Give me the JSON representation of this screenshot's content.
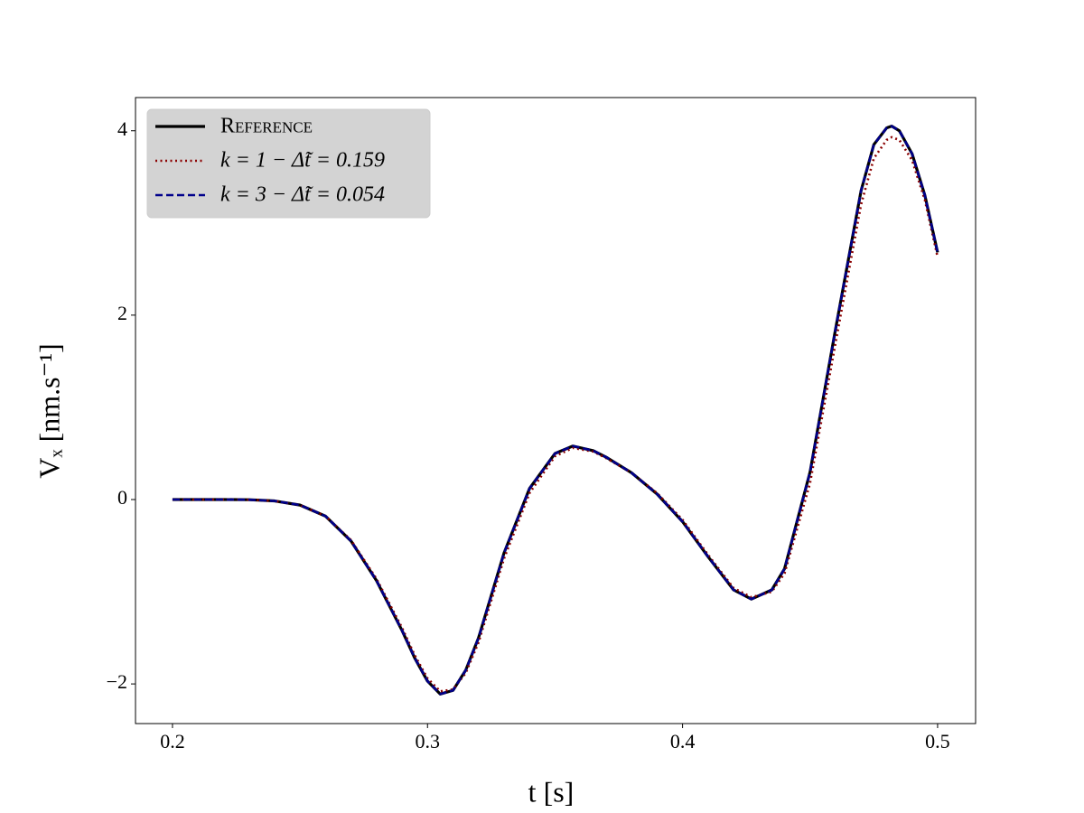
{
  "chart_data": {
    "type": "line",
    "xlabel": "t    [s]",
    "ylabel": "Vₓ    [nm.s⁻¹]",
    "x": [
      0.2,
      0.21,
      0.22,
      0.23,
      0.24,
      0.25,
      0.26,
      0.27,
      0.28,
      0.29,
      0.295,
      0.3,
      0.305,
      0.31,
      0.315,
      0.32,
      0.33,
      0.34,
      0.35,
      0.357,
      0.365,
      0.37,
      0.38,
      0.39,
      0.4,
      0.41,
      0.42,
      0.427,
      0.435,
      0.44,
      0.45,
      0.46,
      0.47,
      0.475,
      0.48,
      0.482,
      0.485,
      0.49,
      0.495,
      0.5
    ],
    "series": [
      {
        "name": "Reference",
        "color": "#000000",
        "style": "solid",
        "values": [
          0,
          0,
          0,
          -0.002,
          -0.015,
          -0.06,
          -0.18,
          -0.45,
          -0.88,
          -1.42,
          -1.72,
          -1.97,
          -2.11,
          -2.07,
          -1.85,
          -1.5,
          -0.58,
          0.12,
          0.5,
          0.58,
          0.53,
          0.46,
          0.29,
          0.06,
          -0.24,
          -0.62,
          -0.98,
          -1.08,
          -0.98,
          -0.75,
          0.3,
          1.85,
          3.35,
          3.85,
          4.03,
          4.05,
          4.0,
          3.75,
          3.3,
          2.68
        ]
      },
      {
        "name": "k = 1  −  Δ̃t = 0.159",
        "color": "#8b0000",
        "style": "dotted",
        "values": [
          0,
          0,
          0,
          -0.002,
          -0.015,
          -0.06,
          -0.18,
          -0.44,
          -0.86,
          -1.39,
          -1.69,
          -1.94,
          -2.08,
          -2.06,
          -1.88,
          -1.55,
          -0.64,
          0.07,
          0.47,
          0.56,
          0.52,
          0.45,
          0.29,
          0.07,
          -0.22,
          -0.6,
          -0.96,
          -1.06,
          -1.0,
          -0.8,
          0.18,
          1.7,
          3.2,
          3.7,
          3.9,
          3.93,
          3.9,
          3.68,
          3.25,
          2.63
        ]
      },
      {
        "name": "k = 3  −  Δ̃t = 0.054",
        "color": "#00008b",
        "style": "dashed",
        "values": [
          0,
          0,
          0,
          -0.002,
          -0.015,
          -0.06,
          -0.18,
          -0.45,
          -0.88,
          -1.42,
          -1.72,
          -1.97,
          -2.11,
          -2.07,
          -1.85,
          -1.5,
          -0.58,
          0.12,
          0.5,
          0.58,
          0.53,
          0.46,
          0.29,
          0.06,
          -0.24,
          -0.62,
          -0.98,
          -1.08,
          -0.98,
          -0.75,
          0.3,
          1.85,
          3.35,
          3.85,
          4.03,
          4.05,
          4.0,
          3.75,
          3.3,
          2.68
        ]
      }
    ],
    "xlim": [
      0.1855,
      0.5149
    ],
    "xticks": [
      0.2,
      0.3,
      0.4,
      0.5
    ],
    "ylim": [
      -2.43,
      4.36
    ],
    "yticks": [
      {
        "value": -2,
        "label": "−2"
      },
      0,
      2,
      4
    ],
    "legend": "upper left",
    "grid": false
  }
}
